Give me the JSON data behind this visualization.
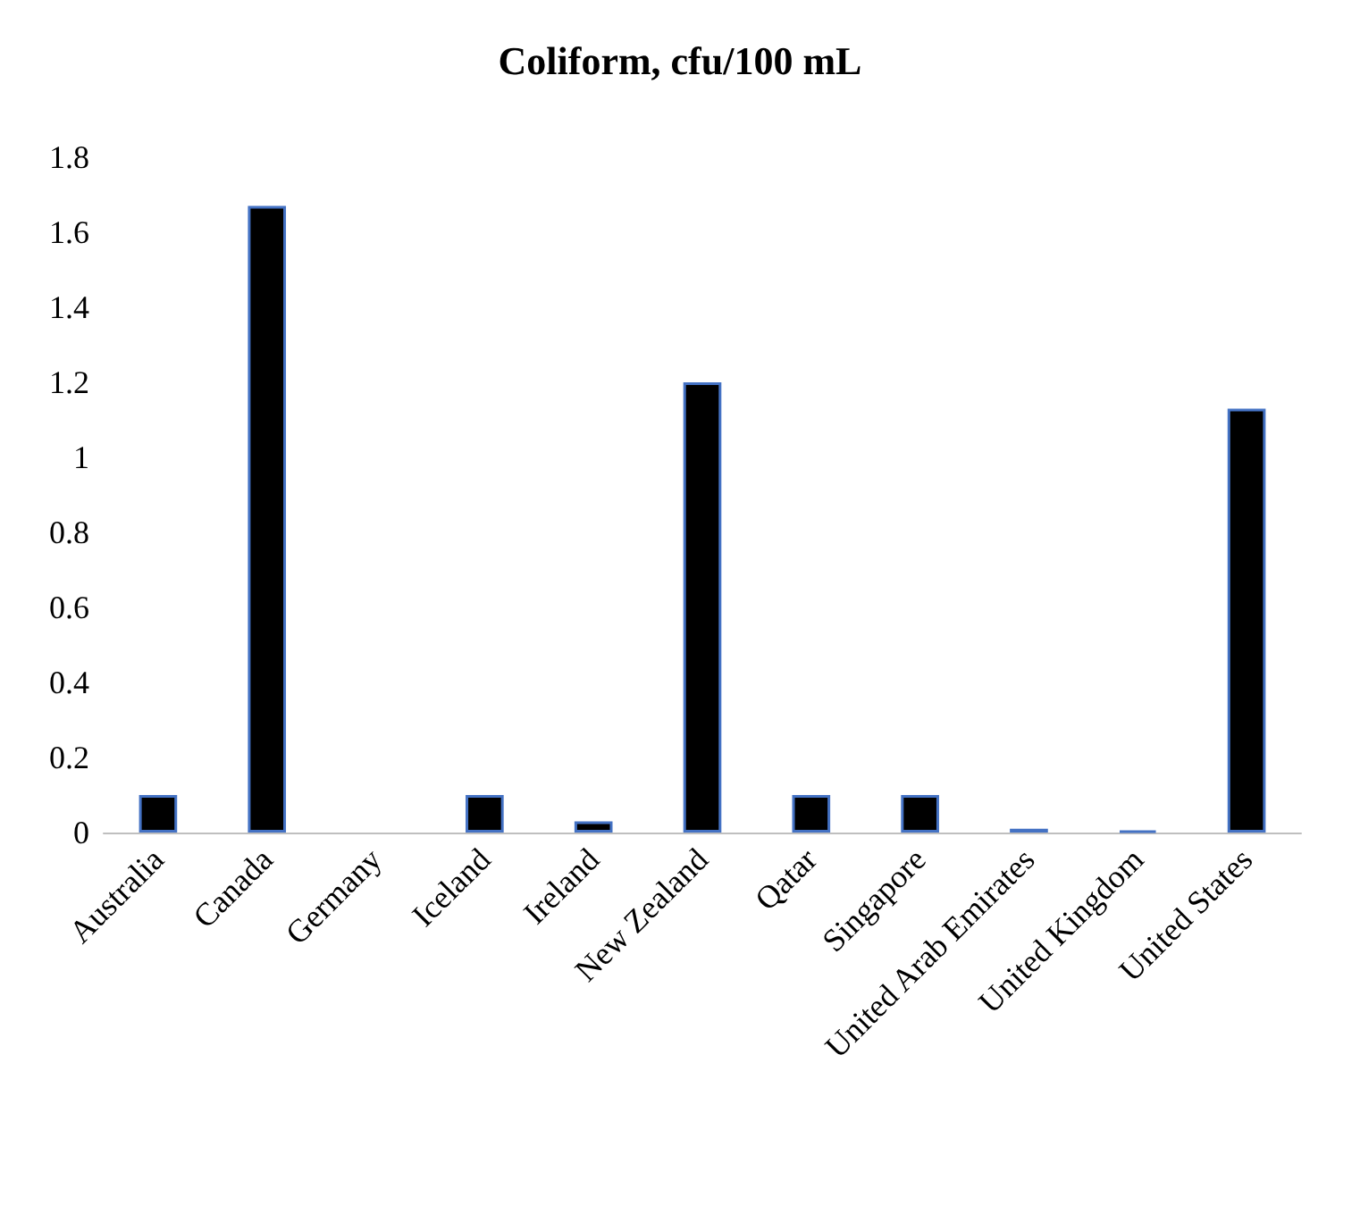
{
  "chart_data": {
    "type": "bar",
    "title": "Coliform, cfu/100 mL",
    "categories": [
      "Australia",
      "Canada",
      "Germany",
      "Iceland",
      "Ireland",
      "New Zealand",
      "Qatar",
      "Singapore",
      "United Arab Emirates",
      "United Kingdom",
      "United States"
    ],
    "values": [
      0.1,
      1.67,
      null,
      0.1,
      0.03,
      1.2,
      0.1,
      0.1,
      0.01,
      0.005,
      1.13
    ],
    "colors": [
      "#000000",
      "#000000",
      "#000000",
      "#000000",
      "#000000",
      "#000000",
      "#000000",
      "#000000",
      "#000000",
      "#4472c4",
      "#000000"
    ],
    "ylim": [
      0,
      1.8
    ],
    "yticks": [
      0,
      0.2,
      0.4,
      0.6,
      0.8,
      1,
      1.2,
      1.4,
      1.6,
      1.8
    ],
    "grid": false
  }
}
